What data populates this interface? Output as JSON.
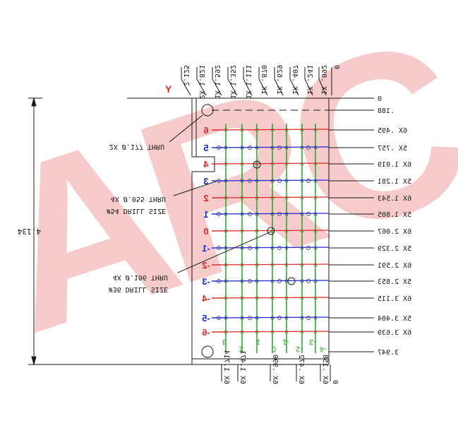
{
  "datum": {
    "y_axis_label": "Y",
    "origin_label": "0"
  },
  "top_dims": [
    {
      "text": "2.125",
      "label": "2.125"
    },
    {
      "text": "2X 1.821",
      "label": "2X 1.821"
    },
    {
      "text": "1X 1.592",
      "label": "1X 1.592"
    },
    {
      "text": "1X 1.352",
      "label": "1X 1.352"
    },
    {
      "text": "1X 1.111",
      "label": "1X 1.111"
    },
    {
      "text": "1X .870",
      "label": "1X .870"
    },
    {
      "text": "1X .629",
      "label": "1X .629"
    },
    {
      "text": "1X .407",
      "label": "1X .407"
    },
    {
      "text": "1X .241",
      "label": "1X .241"
    },
    {
      "text": "1X .092",
      "label": "1X .092"
    },
    {
      "text": "0",
      "label": "0"
    }
  ],
  "bottom_dims": [
    {
      "text": "6X 1.714",
      "label": "6X 1.714"
    },
    {
      "text": "6X 1.471",
      "label": "6X 1.471"
    },
    {
      "text": "6X .990",
      "label": "6X .990"
    },
    {
      "text": "6X .472",
      "label": "6X .472"
    },
    {
      "text": "6X .158",
      "label": "6X .158"
    },
    {
      "text": "0",
      "label": "0"
    }
  ],
  "right_dims": [
    {
      "text": "0",
      "label": "0"
    },
    {
      "text": ".188",
      "label": ".188"
    },
    {
      "text": "6X .495",
      "label": "6X .495"
    },
    {
      "text": "5X .757",
      "label": "5X .757"
    },
    {
      "text": "6X 1.019",
      "label": "6X 1.019"
    },
    {
      "text": "5X 1.281",
      "label": "5X 1.281"
    },
    {
      "text": "6X 1.543",
      "label": "6X 1.543"
    },
    {
      "text": "5X 1.805",
      "label": "5X 1.805"
    },
    {
      "text": "6X 2.067",
      "label": "6X 2.067"
    },
    {
      "text": "5X 2.329",
      "label": "5X 2.329"
    },
    {
      "text": "6X 2.591",
      "label": "6X 2.591"
    },
    {
      "text": "5X 2.853",
      "label": "5X 2.853"
    },
    {
      "text": "6X 3.115",
      "label": "6X 3.115"
    },
    {
      "text": "5X 3.404",
      "label": "5X 3.404"
    },
    {
      "text": "6X 3.639",
      "label": "6X 3.639"
    },
    {
      "text": "3.947",
      "label": "3.947"
    }
  ],
  "row_numbers": [
    {
      "text": "6",
      "color": "#e0281e"
    },
    {
      "text": "5",
      "color": "#1a2ad0"
    },
    {
      "text": "4",
      "color": "#e0281e"
    },
    {
      "text": "3",
      "color": "#1a2ad0"
    },
    {
      "text": "2",
      "color": "#e0281e"
    },
    {
      "text": "1",
      "color": "#1a2ad0"
    },
    {
      "text": "0",
      "color": "#e0281e"
    },
    {
      "text": "-1",
      "color": "#1a2ad0"
    },
    {
      "text": "-2",
      "color": "#e0281e"
    },
    {
      "text": "-3",
      "color": "#1a2ad0"
    },
    {
      "text": "-4",
      "color": "#e0281e"
    },
    {
      "text": "-5",
      "color": "#1a2ad0"
    },
    {
      "text": "-6",
      "color": "#e0281e"
    }
  ],
  "column_numbers": [
    {
      "text": "3",
      "color": "#1fa81f"
    },
    {
      "text": "2",
      "color": "#1fa81f"
    },
    {
      "text": "1",
      "color": "#1fa81f"
    },
    {
      "text": "0",
      "color": "#1fa81f"
    },
    {
      "text": "-1",
      "color": "#1fa81f"
    },
    {
      "text": "-2",
      "color": "#1fa81f"
    },
    {
      "text": "-3",
      "color": "#1fa81f"
    },
    {
      "text": "-4",
      "color": "#1fa81f"
    }
  ],
  "callouts": {
    "mount_hole": "2X Ø.177 THRU",
    "small_hole_1": "4X Ø.055 THRU",
    "small_hole_2": "#54 DRILL SIZE",
    "large_hole_1": "4X Ø.106 THRU",
    "large_hole_2": "#36 DRILL SIZE"
  },
  "overall_height": "4.134",
  "watermark": "ARC",
  "colors": {
    "red": "#e0281e",
    "blue": "#1a2ad0",
    "green": "#1fa81f",
    "line": "#1a1a1a",
    "watermark": "#f6c3c3"
  }
}
